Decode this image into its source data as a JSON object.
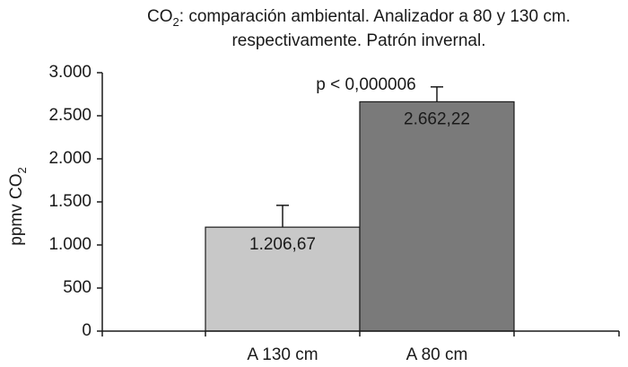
{
  "chart_data": {
    "type": "bar",
    "title_parts": {
      "prefix": "CO",
      "subscript": "2",
      "rest": ": comparación ambiental. Analizador a 80 y 130 cm.",
      "line2": "respectivamente. Patrón invernal."
    },
    "xlabel": "",
    "ylabel_parts": {
      "prefix": "ppmv CO",
      "subscript": "2"
    },
    "categories": [
      "A 130 cm",
      "A 80 cm"
    ],
    "values": [
      1206.67,
      2662.22
    ],
    "value_labels": [
      "1.206,67",
      "2.662,22"
    ],
    "error_upper": [
      1460,
      2835
    ],
    "bar_colors": [
      "#c8c8c8",
      "#7a7a7a"
    ],
    "ylim": [
      0,
      3000
    ],
    "yticks": [
      0,
      500,
      1000,
      1500,
      2000,
      2500,
      3000
    ],
    "ytick_labels": [
      "0",
      "500",
      "1.000",
      "1.500",
      "2.000",
      "2.500",
      "3.000"
    ],
    "annotation": "p < 0,000006",
    "grid": false,
    "legend": "none"
  }
}
